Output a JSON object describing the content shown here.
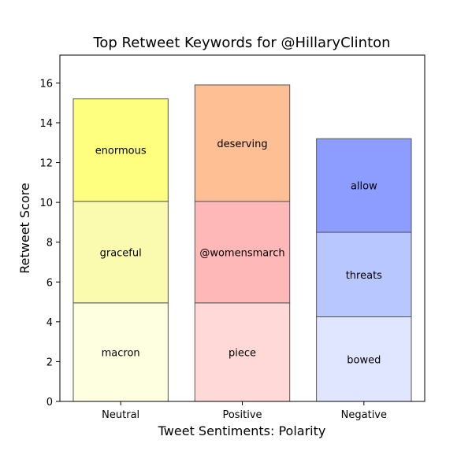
{
  "chart_data": {
    "type": "bar",
    "stacked": true,
    "title": "Top Retweet Keywords for @HillaryClinton",
    "xlabel": "Tweet Sentiments: Polarity",
    "ylabel": "Retweet Score",
    "categories": [
      "Neutral",
      "Positive",
      "Negative"
    ],
    "ylim": [
      0,
      17.4
    ],
    "yticks": [
      0,
      2,
      4,
      6,
      8,
      10,
      12,
      14,
      16
    ],
    "grid": false,
    "bars": [
      {
        "category": "Neutral",
        "segments": [
          {
            "label": "macron",
            "value": 4.95,
            "color": "#fefee0"
          },
          {
            "label": "graceful",
            "value": 5.1,
            "color": "#fbfbb0"
          },
          {
            "label": "enormous",
            "value": 5.15,
            "color": "#ffff7f"
          }
        ]
      },
      {
        "category": "Positive",
        "segments": [
          {
            "label": "piece",
            "value": 4.95,
            "color": "#ffd8d8"
          },
          {
            "label": "@womensmarch",
            "value": 5.1,
            "color": "#ffb8b8"
          },
          {
            "label": "deserving",
            "value": 5.85,
            "color": "#ffbf94"
          }
        ]
      },
      {
        "category": "Negative",
        "segments": [
          {
            "label": "bowed",
            "value": 4.25,
            "color": "#e0e6ff"
          },
          {
            "label": "threats",
            "value": 4.25,
            "color": "#b8c7ff"
          },
          {
            "label": "allow",
            "value": 4.7,
            "color": "#8c9dff"
          }
        ]
      }
    ]
  }
}
